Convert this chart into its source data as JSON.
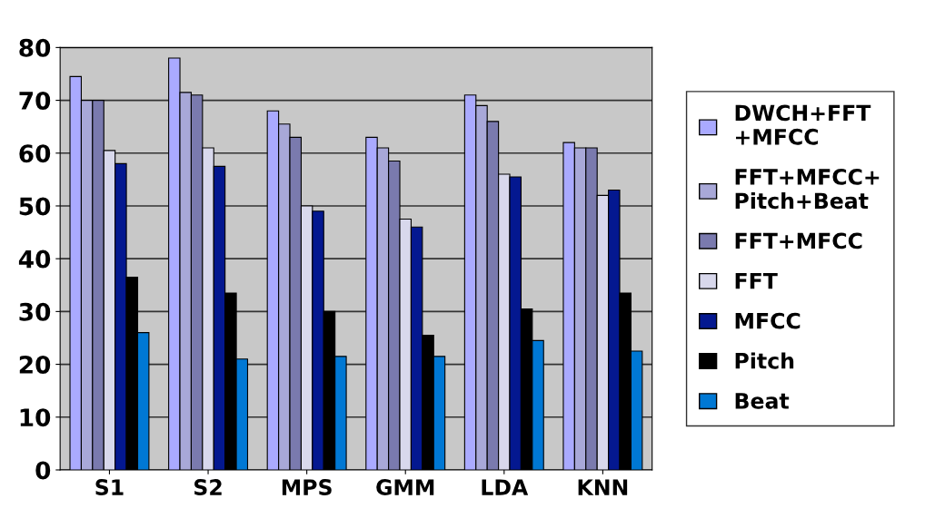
{
  "chart_data": {
    "type": "bar",
    "categories": [
      "S1",
      "S2",
      "MPS",
      "GMM",
      "LDA",
      "KNN"
    ],
    "series": [
      {
        "name": "DWCH+FFT\n+MFCC",
        "color": "#aaaaff",
        "values": [
          74.5,
          78,
          68,
          63,
          71,
          62
        ]
      },
      {
        "name": "FFT+MFCC+\nPitch+Beat",
        "color": "#a8a8d8",
        "values": [
          70,
          71.5,
          65.5,
          61,
          69,
          61
        ]
      },
      {
        "name": "FFT+MFCC",
        "color": "#7a7aae",
        "values": [
          70,
          71,
          63,
          58.5,
          66,
          61
        ]
      },
      {
        "name": "FFT",
        "color": "#d8d8ec",
        "values": [
          60.5,
          61,
          50,
          47.5,
          56,
          52
        ]
      },
      {
        "name": "MFCC",
        "color": "#041890",
        "values": [
          58,
          57.5,
          49,
          46,
          55.5,
          53
        ]
      },
      {
        "name": "Pitch",
        "color": "#000000",
        "values": [
          36.5,
          33.5,
          30,
          25.5,
          30.5,
          33.5
        ]
      },
      {
        "name": "Beat",
        "color": "#0078d4",
        "values": [
          26,
          21,
          21.5,
          21.5,
          24.5,
          22.5
        ]
      }
    ],
    "ylim": [
      0,
      80
    ],
    "yticks": [
      0,
      10,
      20,
      30,
      40,
      50,
      60,
      70,
      80
    ],
    "grid": "y",
    "legend": "right"
  }
}
